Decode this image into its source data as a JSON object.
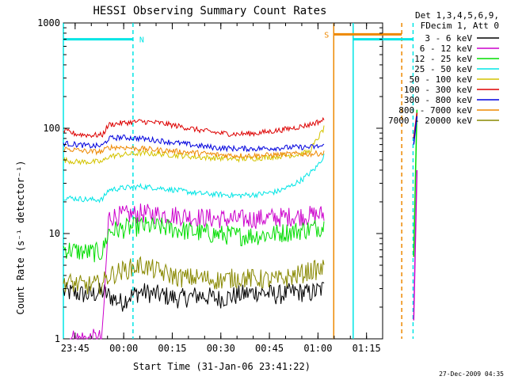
{
  "chart_data": {
    "type": "line",
    "title": "HESSI Observing Summary Count Rates",
    "xlabel": "Start Time (31-Jan-06 23:41:22)",
    "ylabel": "Count Rate (s⁻¹ detector⁻¹)",
    "x_range_minutes_from_start": [
      0,
      98.6
    ],
    "ylim": [
      1,
      1000
    ],
    "yscale": "log",
    "x_tick_labels": [
      "23:45",
      "00:00",
      "00:15",
      "00:30",
      "00:45",
      "01:00",
      "01:15"
    ],
    "y_tick_labels": [
      "1",
      "10",
      "100",
      "1000"
    ],
    "legend": {
      "header": [
        "Det 1,3,4,5,6,9,",
        "FDecim 1, Att 0"
      ],
      "position": "outside-right"
    },
    "series": [
      {
        "name": "3 - 6 keV",
        "color": "#000000",
        "x": [
          0,
          8,
          12,
          18,
          20,
          24,
          30,
          36,
          42,
          48,
          54,
          60,
          66,
          72,
          76,
          80.5
        ],
        "y": [
          2.8,
          2.6,
          2.8,
          2.2,
          2.5,
          2.8,
          2.6,
          2.4,
          2.6,
          2.4,
          2.6,
          2.8,
          2.6,
          2.8,
          2.7,
          3.0
        ]
      },
      {
        "name": "6 - 12 keV",
        "color": "#cc00cc",
        "x": [
          0,
          4,
          8,
          12,
          14,
          18,
          24,
          30,
          36,
          42,
          48,
          54,
          60,
          66,
          72,
          76,
          80.5
        ],
        "y": [
          1.0,
          1.0,
          1.0,
          1.0,
          14.5,
          14.8,
          15.5,
          15.2,
          14.8,
          14.2,
          13.8,
          13.6,
          13.8,
          14.2,
          14.6,
          14.8,
          15.2
        ]
      },
      {
        "name": "12 - 25 keV",
        "color": "#00dd00",
        "x": [
          0,
          4,
          8,
          12,
          14,
          18,
          24,
          30,
          36,
          42,
          48,
          54,
          60,
          66,
          72,
          76,
          80.5
        ],
        "y": [
          7.2,
          6.8,
          6.6,
          6.6,
          10.5,
          11.0,
          11.8,
          11.5,
          10.8,
          10.2,
          9.8,
          9.5,
          9.6,
          10.0,
          10.6,
          11.0,
          11.8
        ]
      },
      {
        "name": "25 - 50 keV",
        "color": "#00e5e5",
        "x": [
          0,
          4,
          8,
          12,
          14,
          18,
          24,
          30,
          36,
          42,
          48,
          54,
          60,
          66,
          70,
          74,
          78,
          80.5
        ],
        "y": [
          22,
          21.5,
          21,
          21,
          26,
          27,
          28,
          27,
          25.5,
          24,
          23.5,
          23,
          23.5,
          25,
          28,
          33,
          42,
          55
        ]
      },
      {
        "name": "50 - 100 keV",
        "color": "#d4c400",
        "x": [
          0,
          4,
          8,
          12,
          14,
          18,
          24,
          30,
          36,
          42,
          48,
          54,
          60,
          66,
          72,
          76,
          80.5
        ],
        "y": [
          50,
          48,
          48,
          48,
          54,
          56,
          58,
          57,
          55,
          53,
          52,
          51,
          52,
          54,
          56,
          60,
          100
        ]
      },
      {
        "name": "100 - 300 keV",
        "color": "#dd0000",
        "x": [
          0,
          4,
          8,
          12,
          14,
          18,
          24,
          30,
          36,
          42,
          48,
          54,
          60,
          66,
          72,
          76,
          80.5
        ],
        "y": [
          95,
          88,
          86,
          86,
          108,
          112,
          116,
          112,
          104,
          96,
          90,
          88,
          90,
          95,
          102,
          108,
          120
        ]
      },
      {
        "name": "300 - 800 keV",
        "color": "#0000dd",
        "x": [
          0,
          4,
          8,
          12,
          14,
          18,
          24,
          30,
          36,
          42,
          48,
          54,
          60,
          66,
          72,
          76,
          80.5
        ],
        "y": [
          72,
          70,
          68,
          68,
          80,
          82,
          80,
          76,
          72,
          68,
          65,
          64,
          64,
          65,
          66,
          66,
          68
        ]
      },
      {
        "name": "800 - 7000 keV",
        "color": "#ee8800",
        "x": [
          0,
          4,
          8,
          12,
          14,
          18,
          24,
          30,
          36,
          42,
          48,
          54,
          60,
          66,
          72,
          76,
          80.5
        ],
        "y": [
          64,
          62,
          60,
          60,
          66,
          66,
          64,
          62,
          60,
          58,
          56,
          55,
          55,
          56,
          57,
          57,
          58
        ]
      },
      {
        "name": "7000 - 20000 keV",
        "color": "#888800",
        "x": [
          0,
          6,
          12,
          14,
          18,
          24,
          30,
          36,
          42,
          48,
          54,
          60,
          66,
          72,
          76,
          80.5
        ],
        "y": [
          3.5,
          3.2,
          3.3,
          4.0,
          4.4,
          5.0,
          4.3,
          3.8,
          3.8,
          3.6,
          3.8,
          3.7,
          3.6,
          4.0,
          4.4,
          4.6
        ]
      }
    ],
    "flag_bars": [
      {
        "label": "N",
        "color": "#00e5e5",
        "x_start": 0,
        "x_end": 21.5,
        "y": 700
      },
      {
        "label": "S",
        "color": "#ee8800",
        "x_start": 83.5,
        "x_end": 104.5,
        "y": 780
      },
      {
        "label": "",
        "color": "#00e5e5",
        "x_start": 89.5,
        "x_end": 108.0,
        "y": 700
      }
    ],
    "vertical_markers": [
      {
        "x": 0.0,
        "color": "#00e5e5",
        "style": "solid"
      },
      {
        "x": 21.5,
        "color": "#00e5e5",
        "style": "dashed"
      },
      {
        "x": 83.5,
        "color": "#ee8800",
        "style": "solid"
      },
      {
        "x": 89.5,
        "color": "#00e5e5",
        "style": "solid"
      },
      {
        "x": 104.5,
        "color": "#ee8800",
        "style": "dashed"
      },
      {
        "x": 108.0,
        "color": "#00e5e5",
        "style": "dashed"
      }
    ],
    "edge_recovery": {
      "x": [
        108.2,
        109.2
      ],
      "values": [
        {
          "color": "#00dd00",
          "y": [
            6,
            150
          ]
        },
        {
          "color": "#dd0000",
          "y": [
            80,
            140
          ]
        },
        {
          "color": "#0000dd",
          "y": [
            70,
            130
          ]
        },
        {
          "color": "#cc00cc",
          "y": [
            1.5,
            40
          ]
        }
      ]
    },
    "footer_timestamp": "27-Dec-2009 04:35",
    "x_axis_start_minute_offset": 3.63
  }
}
